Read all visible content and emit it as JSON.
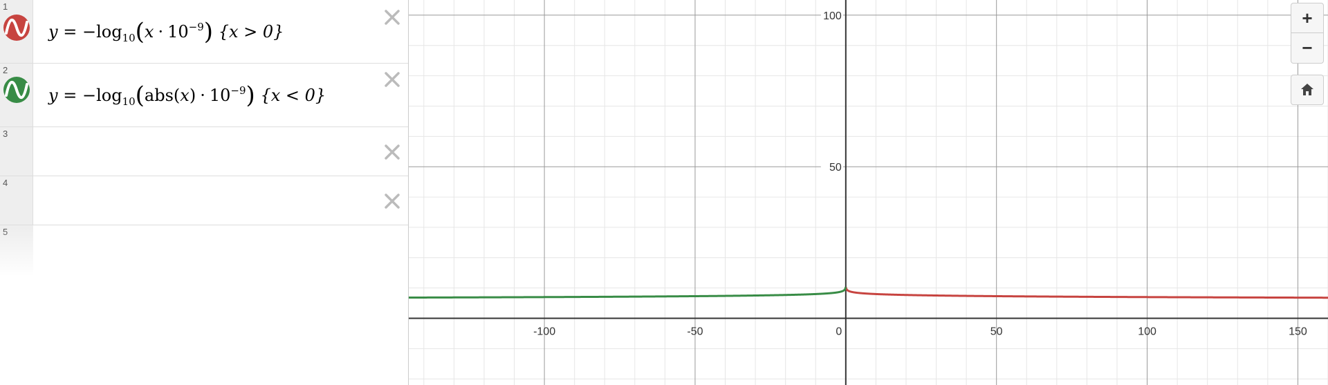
{
  "expressions": [
    {
      "index": "1",
      "color": "#c74440",
      "formula": {
        "lhs": "y",
        "eq": "=",
        "neg": "−",
        "func": "log",
        "base": "10",
        "open_paren": "(",
        "arg": "x",
        "dot": "·",
        "coef": "10",
        "exp": "−9",
        "close_paren": ")",
        "restriction": "{x > 0}"
      }
    },
    {
      "index": "2",
      "color": "#388c46",
      "formula": {
        "lhs": "y",
        "eq": "=",
        "neg": "−",
        "func": "log",
        "base": "10",
        "open_paren": "(",
        "abs_func": "abs",
        "abs_open": "(",
        "arg": "x",
        "abs_close": ")",
        "dot": "·",
        "coef": "10",
        "exp": "−9",
        "close_paren": ")",
        "restriction": "{x < 0}"
      }
    },
    {
      "index": "3"
    },
    {
      "index": "4"
    },
    {
      "index": "5"
    }
  ],
  "graph": {
    "x_ticks": [
      "-100",
      "-50",
      "0",
      "50",
      "100",
      "150"
    ],
    "y_ticks": [
      "100",
      "50"
    ],
    "x_range": [
      -145,
      160
    ],
    "y_range": [
      -22,
      105
    ],
    "curve_colors": {
      "positive": "#c74440",
      "negative": "#388c46"
    }
  },
  "zoom_controls": {
    "zoom_in_label": "+",
    "zoom_out_label": "−",
    "home_icon": "home-icon"
  }
}
